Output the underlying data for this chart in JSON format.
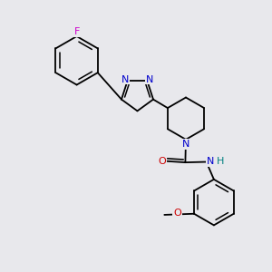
{
  "background_color": "#e8e8ec",
  "bond_color": "#000000",
  "N_color": "#0000cc",
  "O_color": "#cc0000",
  "F_color": "#cc00cc",
  "H_color": "#008080",
  "bond_lw": 1.3,
  "figsize": [
    3.0,
    3.0
  ],
  "dpi": 100,
  "xlim": [
    0,
    10
  ],
  "ylim": [
    0,
    10
  ],
  "font_size": 7.5
}
